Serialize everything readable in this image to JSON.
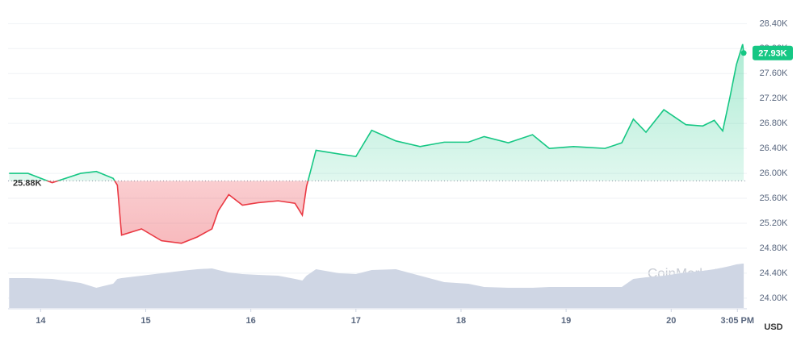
{
  "chart_data": {
    "type": "line",
    "watermark": "CoinMarketCap",
    "currency": "USD",
    "baseline": 25880,
    "baseline_label": "25.88K",
    "last_label": "27.93K",
    "up_color": "#16c784",
    "down_color": "#ea3943",
    "volume_color": "#cfd6e4",
    "grid": true,
    "xlim": [
      13.69,
      20.72
    ],
    "xticks": [
      14,
      15,
      16,
      17,
      18,
      19,
      20,
      {
        "value": 20.63,
        "label": "3:05 PM"
      }
    ],
    "ylim": [
      23830,
      28650
    ],
    "yticks": [
      {
        "value": 24000,
        "label": "24.00K"
      },
      {
        "value": 24400,
        "label": "24.40K"
      },
      {
        "value": 24800,
        "label": "24.80K"
      },
      {
        "value": 25200,
        "label": "25.20K"
      },
      {
        "value": 25600,
        "label": "25.60K"
      },
      {
        "value": 26000,
        "label": "26.00K"
      },
      {
        "value": 26400,
        "label": "26.40K"
      },
      {
        "value": 26800,
        "label": "26.80K"
      },
      {
        "value": 27200,
        "label": "27.20K"
      },
      {
        "value": 27600,
        "label": "27.60K"
      },
      {
        "value": 28000,
        "label": "28.00K"
      },
      {
        "value": 28400,
        "label": "28.40K"
      }
    ],
    "x": [
      13.7,
      13.88,
      14.11,
      14.38,
      14.53,
      14.69,
      14.73,
      14.77,
      14.96,
      15.15,
      15.34,
      15.49,
      15.63,
      15.69,
      15.79,
      15.92,
      16.07,
      16.26,
      16.42,
      16.49,
      16.53,
      16.62,
      16.84,
      17.0,
      17.15,
      17.38,
      17.61,
      17.84,
      18.07,
      18.22,
      18.45,
      18.68,
      18.84,
      19.07,
      19.37,
      19.53,
      19.64,
      19.76,
      19.93,
      20.14,
      20.3,
      20.41,
      20.49,
      20.56,
      20.62,
      20.68,
      20.69
    ],
    "values": [
      26000,
      26000,
      25850,
      26000,
      26030,
      25920,
      25810,
      25010,
      25110,
      24920,
      24880,
      24980,
      25110,
      25400,
      25660,
      25490,
      25530,
      25560,
      25520,
      25330,
      25790,
      26370,
      26310,
      26270,
      26690,
      26520,
      26430,
      26500,
      26500,
      26590,
      26490,
      26620,
      26400,
      26430,
      26400,
      26490,
      26870,
      26660,
      27020,
      26780,
      26760,
      26850,
      26680,
      27230,
      27740,
      28070,
      27930
    ],
    "volume_lim": [
      0,
      70
    ],
    "volume": [
      37,
      37,
      36,
      31,
      25,
      30,
      36,
      37,
      40,
      43,
      46,
      48,
      49,
      47,
      44,
      42,
      41,
      40,
      36,
      34,
      40,
      48,
      43,
      42,
      47,
      48,
      40,
      32,
      30,
      26,
      25,
      25,
      26,
      26,
      26,
      26,
      36,
      38,
      40,
      44,
      46,
      48,
      50,
      52,
      54,
      55,
      55
    ]
  }
}
